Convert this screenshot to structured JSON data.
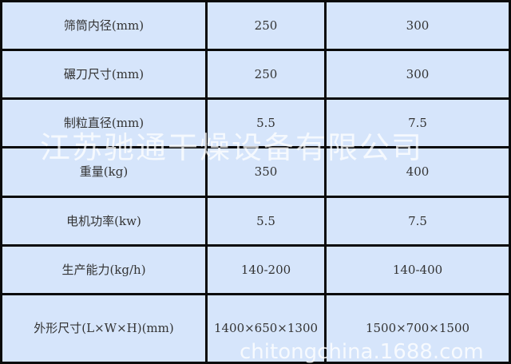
{
  "table": {
    "rows": [
      {
        "label": "筛筒内径(mm)",
        "values": [
          "250",
          "300"
        ]
      },
      {
        "label": "碾刀尺寸(mm)",
        "values": [
          "250",
          "300"
        ]
      },
      {
        "label": "制粒直径(mm)",
        "values": [
          "5.5",
          "7.5"
        ]
      },
      {
        "label": "重量(kg)",
        "values": [
          "350",
          "400"
        ]
      },
      {
        "label": "电机功率(kw)",
        "values": [
          "5.5",
          "7.5"
        ]
      },
      {
        "label": "生产能力(kg/h)",
        "values": [
          "140-200",
          "140-400"
        ]
      },
      {
        "label": "外形尺寸(L×W×H)(mm)",
        "values": [
          "1400×650×1300",
          "1500×700×1500"
        ]
      }
    ]
  },
  "watermarks": {
    "company": "江苏驰通干燥设备有限公司",
    "site": "chitongchina.1688.com"
  },
  "colors": {
    "cell_background": "#d6e5fb",
    "border": "#0a0a0a"
  }
}
